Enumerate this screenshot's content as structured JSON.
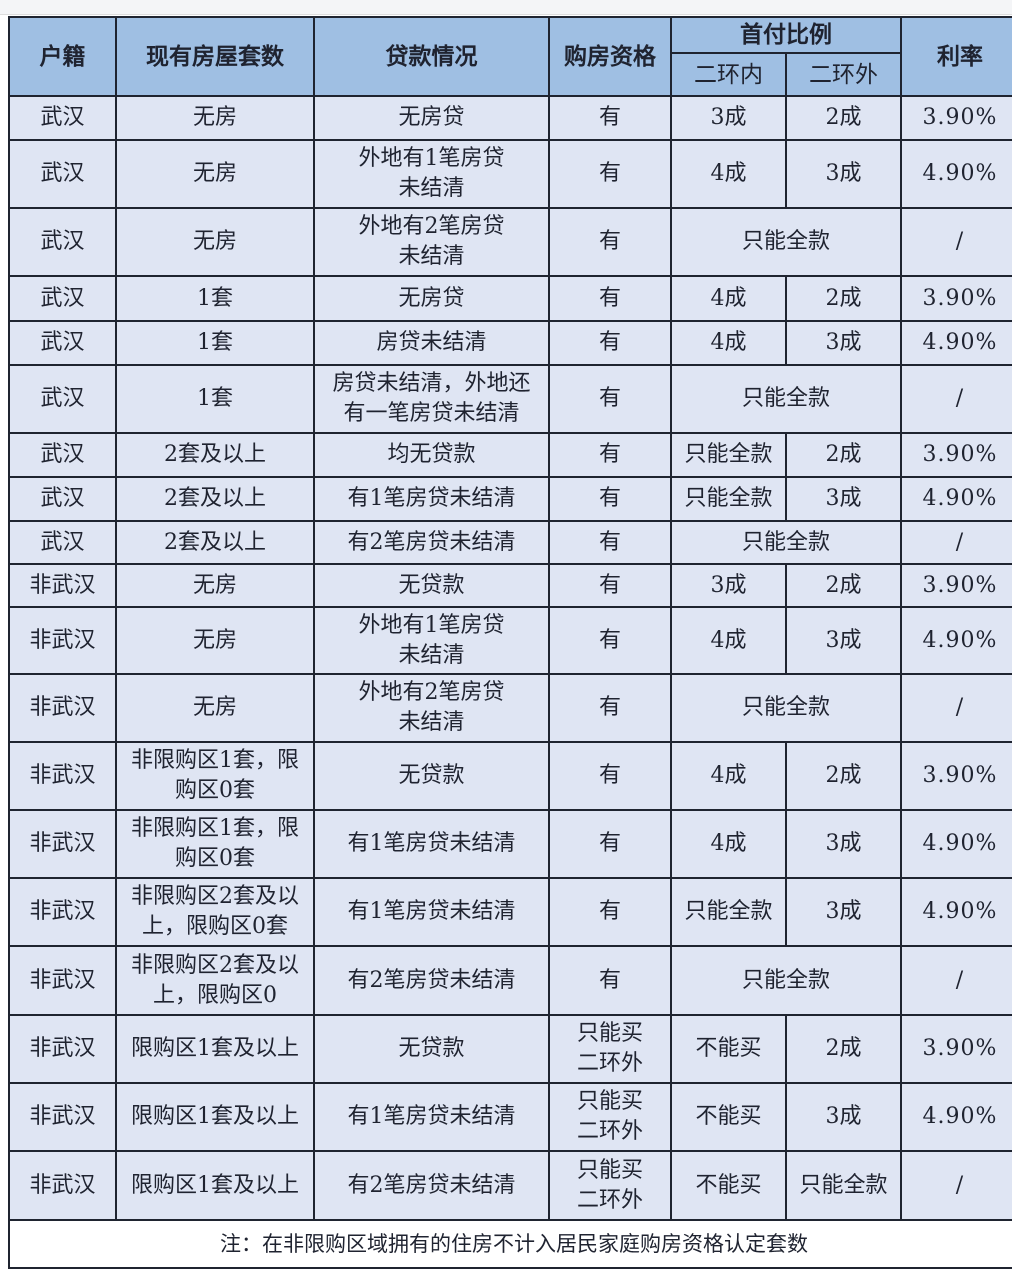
{
  "headers": {
    "huji": "户籍",
    "houses": "现有房屋套数",
    "loan": "贷款情况",
    "qualification": "购房资格",
    "down_payment": "首付比例",
    "inner": "二环内",
    "outer": "二环外",
    "rate": "利率"
  },
  "rows": [
    [
      "武汉",
      "无房",
      "无房贷",
      "有",
      "3成",
      "2成",
      "3.90%"
    ],
    [
      "武汉",
      "无房",
      "外地有1笔房贷\n未结清",
      "有",
      "4成",
      "3成",
      "4.90%"
    ],
    [
      "武汉",
      "无房",
      "外地有2笔房贷\n未结清",
      "有",
      "只能全款",
      null,
      "/"
    ],
    [
      "武汉",
      "1套",
      "无房贷",
      "有",
      "4成",
      "2成",
      "3.90%"
    ],
    [
      "武汉",
      "1套",
      "房贷未结清",
      "有",
      "4成",
      "3成",
      "4.90%"
    ],
    [
      "武汉",
      "1套",
      "房贷未结清，外地还\n有一笔房贷未结清",
      "有",
      "只能全款",
      null,
      "/"
    ],
    [
      "武汉",
      "2套及以上",
      "均无贷款",
      "有",
      "只能全款",
      "2成",
      "3.90%"
    ],
    [
      "武汉",
      "2套及以上",
      "有1笔房贷未结清",
      "有",
      "只能全款",
      "3成",
      "4.90%"
    ],
    [
      "武汉",
      "2套及以上",
      "有2笔房贷未结清",
      "有",
      "只能全款",
      null,
      "/"
    ],
    [
      "非武汉",
      "无房",
      "无贷款",
      "有",
      "3成",
      "2成",
      "3.90%"
    ],
    [
      "非武汉",
      "无房",
      "外地有1笔房贷\n未结清",
      "有",
      "4成",
      "3成",
      "4.90%"
    ],
    [
      "非武汉",
      "无房",
      "外地有2笔房贷\n未结清",
      "有",
      "只能全款",
      null,
      "/"
    ],
    [
      "非武汉",
      "非限购区1套，限\n购区0套",
      "无贷款",
      "有",
      "4成",
      "2成",
      "3.90%"
    ],
    [
      "非武汉",
      "非限购区1套，限\n购区0套",
      "有1笔房贷未结清",
      "有",
      "4成",
      "3成",
      "4.90%"
    ],
    [
      "非武汉",
      "非限购区2套及以\n上，限购区0套",
      "有1笔房贷未结清",
      "有",
      "只能全款",
      "3成",
      "4.90%"
    ],
    [
      "非武汉",
      "非限购区2套及以\n上，限购区0",
      "有2笔房贷未结清",
      "有",
      "只能全款",
      null,
      "/"
    ],
    [
      "非武汉",
      "限购区1套及以上",
      "无贷款",
      "只能买\n二环外",
      "不能买",
      "2成",
      "3.90%"
    ],
    [
      "非武汉",
      "限购区1套及以上",
      "有1笔房贷未结清",
      "只能买\n二环外",
      "不能买",
      "3成",
      "4.90%"
    ],
    [
      "非武汉",
      "限购区1套及以上",
      "有2笔房贷未结清",
      "只能买\n二环外",
      "不能买",
      "只能全款",
      "/"
    ]
  ],
  "note": "注：在非限购区域拥有的住房不计入居民家庭购房资格认定套数",
  "colors": {
    "header_bg": "#9fbfe3",
    "cell_bg": "#dfe5f3",
    "border": "#1f2430"
  }
}
